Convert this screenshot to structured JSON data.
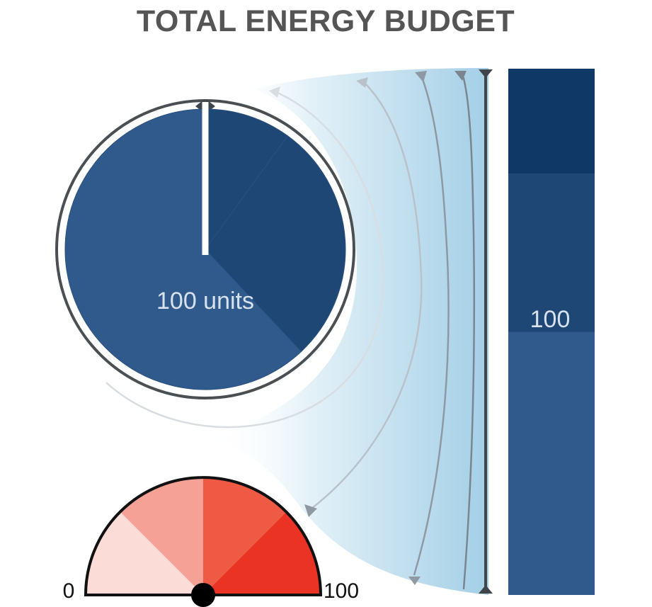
{
  "title": "TOTAL ENERGY BUDGET",
  "pie": {
    "center_label": "100 units",
    "segments": [
      {
        "value": 10,
        "color": "#1f4775"
      },
      {
        "value": 28,
        "color": "#1f4775"
      },
      {
        "value": 62,
        "color": "#2f5a8b"
      }
    ]
  },
  "stack_bar": {
    "label": "100",
    "segments": [
      {
        "value": 20,
        "color": "#0f3866"
      },
      {
        "value": 30,
        "color": "#1f4775"
      },
      {
        "value": 50,
        "color": "#2f5a8b"
      }
    ]
  },
  "gauge": {
    "min_label": "0",
    "max_label": "100",
    "bands": [
      "#fbdcd6",
      "#f5a196",
      "#ef5a45",
      "#ea3324"
    ]
  },
  "colors": {
    "title": "#555555",
    "funnel": "#a9d3e8",
    "arc_lines": "#7f8a94",
    "bracket": "#3f4549"
  }
}
